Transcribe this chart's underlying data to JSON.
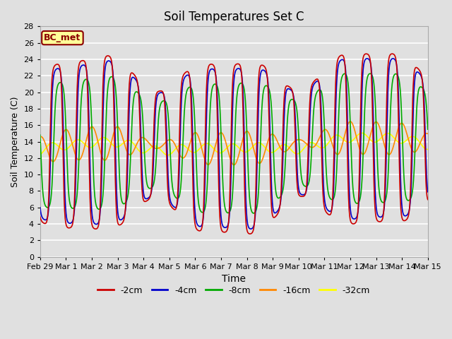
{
  "title": "Soil Temperatures Set C",
  "xlabel": "Time",
  "ylabel": "Soil Temperature (C)",
  "ylim": [
    0,
    28
  ],
  "yticks": [
    0,
    2,
    4,
    6,
    8,
    10,
    12,
    14,
    16,
    18,
    20,
    22,
    24,
    26,
    28
  ],
  "background_color": "#e0e0e0",
  "plot_bg_color": "#e0e0e0",
  "grid_color": "#ffffff",
  "label_box": "BC_met",
  "series_colors": {
    "-2cm": "#cc0000",
    "-4cm": "#0000cc",
    "-8cm": "#00aa00",
    "-16cm": "#ff8800",
    "-32cm": "#ffff00"
  },
  "x_tick_labels": [
    "Feb 29",
    "Mar 1",
    "Mar 2",
    "Mar 3",
    "Mar 4",
    "Mar 5",
    "Mar 6",
    "Mar 7",
    "Mar 8",
    "Mar 9",
    "Mar 10",
    "Mar 11",
    "Mar 12",
    "Mar 13",
    "Mar 14",
    "Mar 15"
  ],
  "n_points": 1440
}
